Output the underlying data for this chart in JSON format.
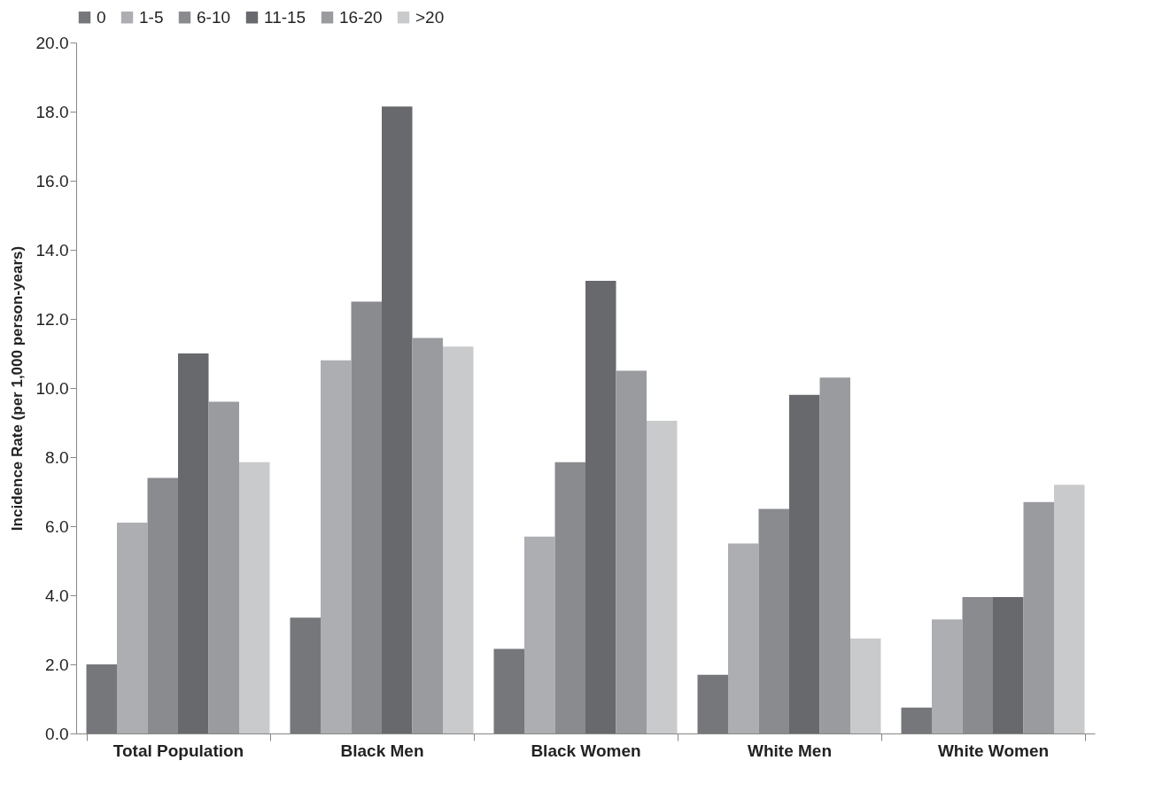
{
  "chart_data": {
    "type": "bar",
    "ylabel": "Incidence Rate (per 1,000 person-years)",
    "categories": [
      "Total Population",
      "Black Men",
      "Black Women",
      "White Men",
      "White Women"
    ],
    "series": [
      {
        "name": "0",
        "color": "#76777b",
        "values": [
          2.0,
          3.35,
          2.45,
          1.7,
          0.75
        ]
      },
      {
        "name": "1-5",
        "color": "#adaeb2",
        "values": [
          6.1,
          10.8,
          5.7,
          5.5,
          3.3
        ]
      },
      {
        "name": "6-10",
        "color": "#8a8b8f",
        "values": [
          7.4,
          12.5,
          7.85,
          6.5,
          3.95
        ]
      },
      {
        "name": "11-15",
        "color": "#68696d",
        "values": [
          11.0,
          18.15,
          13.1,
          9.8,
          3.95
        ]
      },
      {
        "name": "16-20",
        "color": "#9a9b9f",
        "values": [
          9.6,
          11.45,
          10.5,
          10.3,
          6.7
        ]
      },
      {
        "name": ">20",
        "color": "#c9cacc",
        "values": [
          7.85,
          11.2,
          9.05,
          2.75,
          7.2
        ]
      }
    ],
    "ylim": [
      0,
      20
    ],
    "yticks": [
      {
        "value": 0,
        "label": "0.0"
      },
      {
        "value": 2,
        "label": "2.0"
      },
      {
        "value": 4,
        "label": "4.0"
      },
      {
        "value": 6,
        "label": "6.0"
      },
      {
        "value": 8,
        "label": "8.0"
      },
      {
        "value": 10,
        "label": "10.0"
      },
      {
        "value": 12,
        "label": "12.0"
      },
      {
        "value": 14,
        "label": "14.0"
      },
      {
        "value": 16,
        "label": "16.0"
      },
      {
        "value": 18,
        "label": "18.0"
      },
      {
        "value": 20,
        "label": "20.0"
      }
    ],
    "grid": false,
    "legend": "top"
  }
}
